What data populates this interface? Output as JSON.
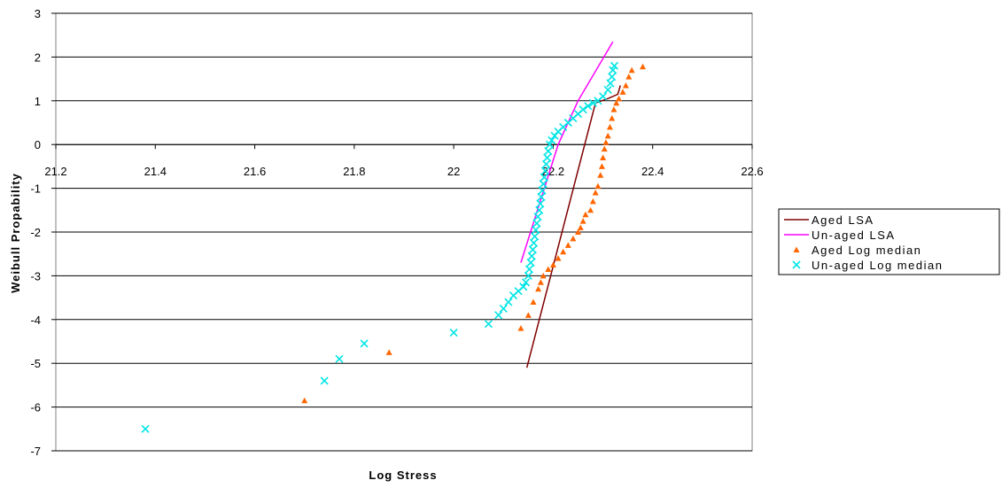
{
  "chart_data": {
    "type": "scatter",
    "title": "",
    "xlabel": "Log Stress",
    "ylabel": "Weibull Propability",
    "xlim": [
      21.2,
      22.6
    ],
    "ylim": [
      -7,
      3
    ],
    "x_ticks": [
      21.2,
      21.4,
      21.6,
      21.8,
      22,
      22.2,
      22.4,
      22.6
    ],
    "x_tick_labels": [
      "21.2",
      "21.4",
      "21.6",
      "21.8",
      "22",
      "22.2",
      "22.4",
      "22.6"
    ],
    "y_ticks": [
      3,
      2,
      1,
      0,
      -1,
      -2,
      -3,
      -4,
      -5,
      -6,
      -7
    ],
    "y_tick_labels": [
      "3",
      "2",
      "1",
      "0",
      "-1",
      "-2",
      "-3",
      "-4",
      "-5",
      "-6",
      "-7"
    ],
    "grid": "horizontal",
    "legend_position": "right",
    "series": [
      {
        "name": "Aged LSA",
        "kind": "line",
        "color": "#800000",
        "points": [
          [
            22.147,
            -5.1
          ],
          [
            22.285,
            0.95
          ],
          [
            22.31,
            1.05
          ],
          [
            22.33,
            1.15
          ],
          [
            22.335,
            1.35
          ]
        ]
      },
      {
        "name": "Un-aged LSA",
        "kind": "line",
        "color": "#ff00ff",
        "points": [
          [
            22.135,
            -2.7
          ],
          [
            22.21,
            0.0
          ],
          [
            22.25,
            1.0
          ],
          [
            22.32,
            2.35
          ]
        ]
      },
      {
        "name": "Aged Log median",
        "kind": "marker",
        "marker": "triangle",
        "color": "#ff6600",
        "points": [
          [
            21.7,
            -5.85
          ],
          [
            21.87,
            -4.75
          ],
          [
            22.135,
            -4.2
          ],
          [
            22.15,
            -3.9
          ],
          [
            22.16,
            -3.6
          ],
          [
            22.17,
            -3.3
          ],
          [
            22.175,
            -3.15
          ],
          [
            22.18,
            -3.0
          ],
          [
            22.19,
            -2.85
          ],
          [
            22.2,
            -2.75
          ],
          [
            22.21,
            -2.6
          ],
          [
            22.22,
            -2.45
          ],
          [
            22.23,
            -2.3
          ],
          [
            22.24,
            -2.15
          ],
          [
            22.25,
            -2.0
          ],
          [
            22.255,
            -1.9
          ],
          [
            22.26,
            -1.75
          ],
          [
            22.265,
            -1.6
          ],
          [
            22.275,
            -1.5
          ],
          [
            22.28,
            -1.3
          ],
          [
            22.285,
            -1.1
          ],
          [
            22.29,
            -0.95
          ],
          [
            22.295,
            -0.7
          ],
          [
            22.298,
            -0.5
          ],
          [
            22.3,
            -0.3
          ],
          [
            22.303,
            -0.1
          ],
          [
            22.306,
            0.05
          ],
          [
            22.31,
            0.2
          ],
          [
            22.314,
            0.4
          ],
          [
            22.318,
            0.6
          ],
          [
            22.322,
            0.8
          ],
          [
            22.327,
            0.95
          ],
          [
            22.332,
            1.05
          ],
          [
            22.34,
            1.2
          ],
          [
            22.346,
            1.35
          ],
          [
            22.352,
            1.55
          ],
          [
            22.358,
            1.7
          ],
          [
            22.38,
            1.78
          ]
        ]
      },
      {
        "name": "Un-aged Log median",
        "kind": "marker",
        "marker": "x",
        "color": "#00e5e5",
        "points": [
          [
            21.38,
            -6.5
          ],
          [
            21.74,
            -5.4
          ],
          [
            21.77,
            -4.9
          ],
          [
            21.82,
            -4.55
          ],
          [
            22.0,
            -4.3
          ],
          [
            22.07,
            -4.1
          ],
          [
            22.09,
            -3.9
          ],
          [
            22.1,
            -3.75
          ],
          [
            22.11,
            -3.6
          ],
          [
            22.12,
            -3.45
          ],
          [
            22.13,
            -3.35
          ],
          [
            22.14,
            -3.25
          ],
          [
            22.145,
            -3.15
          ],
          [
            22.15,
            -3.0
          ],
          [
            22.152,
            -2.85
          ],
          [
            22.155,
            -2.7
          ],
          [
            22.157,
            -2.55
          ],
          [
            22.159,
            -2.4
          ],
          [
            22.161,
            -2.25
          ],
          [
            22.163,
            -2.1
          ],
          [
            22.165,
            -1.95
          ],
          [
            22.167,
            -1.8
          ],
          [
            22.169,
            -1.65
          ],
          [
            22.172,
            -1.5
          ],
          [
            22.174,
            -1.35
          ],
          [
            22.176,
            -1.2
          ],
          [
            22.178,
            -1.05
          ],
          [
            22.18,
            -0.9
          ],
          [
            22.182,
            -0.75
          ],
          [
            22.184,
            -0.6
          ],
          [
            22.186,
            -0.45
          ],
          [
            22.188,
            -0.3
          ],
          [
            22.19,
            -0.15
          ],
          [
            22.193,
            0.0
          ],
          [
            22.197,
            0.1
          ],
          [
            22.203,
            0.2
          ],
          [
            22.21,
            0.3
          ],
          [
            22.22,
            0.4
          ],
          [
            22.23,
            0.5
          ],
          [
            22.24,
            0.6
          ],
          [
            22.25,
            0.7
          ],
          [
            22.26,
            0.8
          ],
          [
            22.27,
            0.88
          ],
          [
            22.28,
            0.95
          ],
          [
            22.29,
            1.0
          ],
          [
            22.3,
            1.1
          ],
          [
            22.31,
            1.25
          ],
          [
            22.315,
            1.4
          ],
          [
            22.318,
            1.55
          ],
          [
            22.32,
            1.7
          ],
          [
            22.323,
            1.8
          ]
        ]
      }
    ]
  }
}
